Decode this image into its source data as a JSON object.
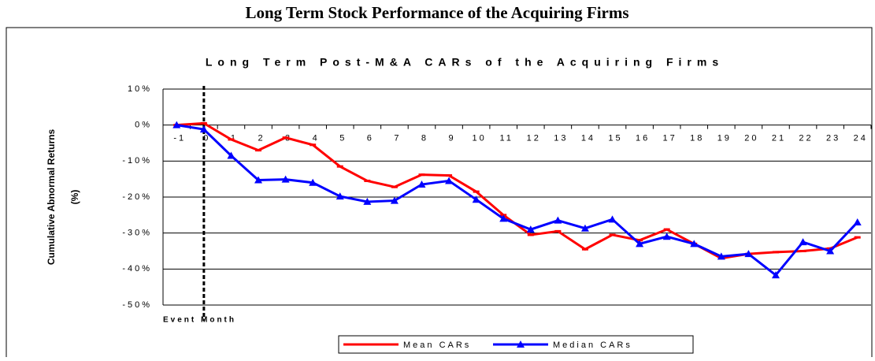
{
  "page_title": "Long Term Stock Performance of the Acquiring Firms",
  "chart_data": {
    "type": "line",
    "title": "Long Term Post-M&A CARs of the Acquiring Firms",
    "y_label": [
      "Cumulative Abnormal Returns",
      "(%)"
    ],
    "x_label": "Event Month",
    "categories": [
      "-1",
      "0",
      "1",
      "2",
      "3",
      "4",
      "5",
      "6",
      "7",
      "8",
      "9",
      "10",
      "11",
      "12",
      "13",
      "14",
      "15",
      "16",
      "17",
      "18",
      "19",
      "20",
      "21",
      "22",
      "23",
      "24"
    ],
    "series": [
      {
        "name": "Mean CARs",
        "color": "#ff0000",
        "marker": "dash",
        "values": [
          0,
          0.5,
          -4,
          -7,
          -3.5,
          -5.5,
          -11.5,
          -15.5,
          -17.2,
          -13.8,
          -14,
          -18.5,
          -25,
          -30.5,
          -29.5,
          -34.5,
          -30.5,
          -32,
          -29,
          -33,
          -37,
          -35.8,
          -35.3,
          -35,
          -34.3,
          -31.2
        ]
      },
      {
        "name": "Median CARs",
        "color": "#0000ff",
        "marker": "triangle",
        "values": [
          0,
          -1.2,
          -8.5,
          -15.3,
          -15.1,
          -16,
          -19.8,
          -21.3,
          -21,
          -16.5,
          -15.5,
          -20.7,
          -26,
          -29,
          -26.5,
          -28.7,
          -26.2,
          -33,
          -31,
          -33,
          -36.5,
          -35.8,
          -41.7,
          -32.5,
          -35,
          -27
        ]
      }
    ],
    "ylim": [
      -50,
      10
    ],
    "yticks": [
      {
        "value": 10,
        "label": "10%"
      },
      {
        "value": 0,
        "label": "0%"
      },
      {
        "value": -10,
        "label": "-10%"
      },
      {
        "value": -20,
        "label": "-20%"
      },
      {
        "value": -30,
        "label": "-30%"
      },
      {
        "value": -40,
        "label": "-40%"
      },
      {
        "value": -50,
        "label": "-50%"
      }
    ],
    "event_line": "0",
    "grid": true,
    "legend": "bottom"
  }
}
